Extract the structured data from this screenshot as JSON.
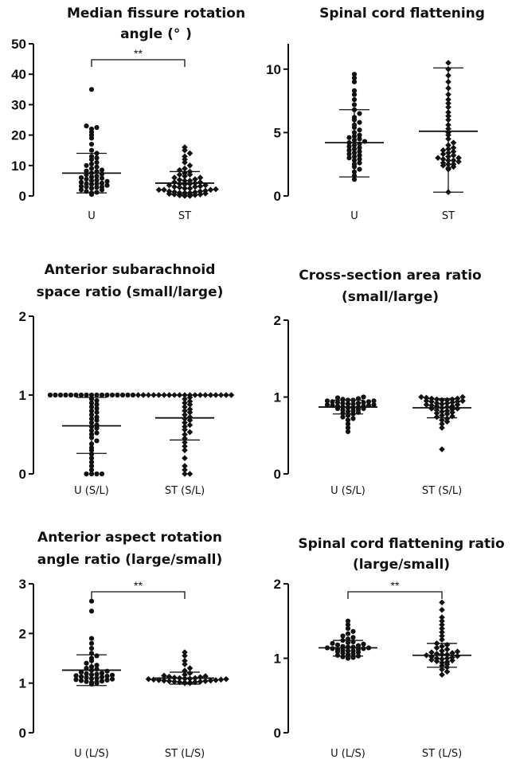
{
  "chart_data": [
    {
      "type": "scatter",
      "title_lines": [
        "Median fissure rotation",
        "angle (°  )"
      ],
      "ylim": [
        0,
        50
      ],
      "yticks": [
        "0",
        "10",
        "20",
        "30",
        "40",
        "50"
      ],
      "categories": [
        "U",
        "ST"
      ],
      "significance": "**",
      "series": [
        {
          "name": "U",
          "marker": "circle",
          "mean": 7.5,
          "sd_low": 1.0,
          "sd_high": 14.0,
          "values": [
            0.5,
            1,
            1.2,
            1.5,
            2,
            2,
            2.5,
            2.8,
            3,
            3,
            3.2,
            3.5,
            3.8,
            4,
            4,
            4.2,
            4.5,
            4.8,
            5,
            5.2,
            5.5,
            5.8,
            6,
            6.2,
            6.5,
            7,
            7.2,
            7.5,
            8,
            8.2,
            8.5,
            9,
            9.5,
            10,
            10.5,
            11,
            12,
            12.5,
            13,
            14,
            15,
            17,
            19,
            20,
            21,
            22,
            22.5,
            23,
            35
          ]
        },
        {
          "name": "ST",
          "marker": "diamond",
          "mean": 4.2,
          "sd_low": 0.5,
          "sd_high": 8.0,
          "values": [
            0,
            0,
            0.2,
            0.3,
            0.5,
            0.5,
            0.7,
            0.8,
            1,
            1,
            1,
            1.2,
            1.3,
            1.5,
            1.5,
            1.7,
            2,
            2,
            2,
            2.2,
            2.5,
            2.5,
            2.8,
            3,
            3,
            3.2,
            3.5,
            3.5,
            3.8,
            4,
            4,
            4.2,
            4.5,
            4.5,
            5,
            5,
            5.3,
            5.5,
            6,
            6,
            6.5,
            7,
            7,
            7.5,
            8,
            8.5,
            9,
            10,
            11,
            12,
            13,
            14,
            15,
            16
          ]
        }
      ]
    },
    {
      "type": "scatter",
      "title_lines": [
        "Spinal cord flattening"
      ],
      "ylim": [
        0,
        12
      ],
      "yticks": [
        "0",
        "5",
        "10"
      ],
      "categories": [
        "U",
        "ST"
      ],
      "series": [
        {
          "name": "U",
          "marker": "circle",
          "mean": 4.2,
          "sd_low": 1.5,
          "sd_high": 6.8,
          "values": [
            1.3,
            1.6,
            1.9,
            2.1,
            2.3,
            2.5,
            2.6,
            2.8,
            2.9,
            3,
            3.1,
            3.2,
            3.3,
            3.4,
            3.5,
            3.6,
            3.7,
            3.8,
            3.9,
            4,
            4.1,
            4.2,
            4.3,
            4.4,
            4.5,
            4.6,
            4.7,
            4.8,
            5,
            5.2,
            5.4,
            5.6,
            5.8,
            6,
            6.2,
            6.5,
            6.8,
            7.2,
            7.6,
            8,
            8.3,
            9,
            9.3,
            9.6
          ]
        },
        {
          "name": "ST",
          "marker": "diamond",
          "mean": 5.1,
          "sd_low": 0.3,
          "sd_high": 10.1,
          "values": [
            0.3,
            2.1,
            2.2,
            2.3,
            2.4,
            2.5,
            2.5,
            2.6,
            2.7,
            2.8,
            2.8,
            2.9,
            3,
            3,
            3.1,
            3.2,
            3.3,
            3.4,
            3.5,
            3.6,
            3.7,
            3.8,
            4,
            4.2,
            4.5,
            4.8,
            5,
            5.3,
            5.6,
            6,
            6.3,
            6.6,
            7,
            7.3,
            7.6,
            8,
            8.5,
            9,
            9.5,
            10,
            10.5
          ]
        }
      ]
    },
    {
      "type": "scatter",
      "title_lines": [
        "Anterior subarachnoid",
        "space ratio (small/large)"
      ],
      "ylim": [
        0,
        2
      ],
      "yticks": [
        "0",
        "1",
        "2"
      ],
      "categories": [
        "U (S/L)",
        "ST (S/L)"
      ],
      "series": [
        {
          "name": "U (S/L)",
          "marker": "circle",
          "mean": 0.61,
          "sd_low": 0.26,
          "sd_high": 0.97,
          "values": [
            0,
            0,
            0,
            0,
            0.05,
            0.1,
            0.15,
            0.2,
            0.25,
            0.3,
            0.33,
            0.38,
            0.42,
            0.46,
            0.5,
            0.52,
            0.55,
            0.58,
            0.6,
            0.62,
            0.65,
            0.68,
            0.7,
            0.72,
            0.75,
            0.78,
            0.8,
            0.83,
            0.85,
            0.88,
            0.9,
            0.93,
            0.95,
            1,
            1,
            1,
            1,
            1,
            1,
            1,
            1,
            1,
            1,
            1,
            1,
            1,
            1,
            1,
            1,
            1
          ]
        },
        {
          "name": "ST (S/L)",
          "marker": "diamond",
          "mean": 0.71,
          "sd_low": 0.43,
          "sd_high": 1.0,
          "values": [
            0,
            0,
            0.05,
            0.1,
            0.2,
            0.3,
            0.35,
            0.4,
            0.45,
            0.5,
            0.53,
            0.56,
            0.6,
            0.62,
            0.65,
            0.68,
            0.7,
            0.72,
            0.75,
            0.78,
            0.8,
            0.82,
            0.85,
            0.88,
            0.9,
            0.92,
            0.95,
            0.97,
            1,
            1,
            1,
            1,
            1,
            1,
            1,
            1,
            1,
            1,
            1,
            1,
            1,
            1,
            1,
            1,
            1,
            1,
            1
          ]
        }
      ]
    },
    {
      "type": "scatter",
      "title_lines": [
        "Cross-section area ratio",
        "(small/large)"
      ],
      "ylim": [
        0,
        2
      ],
      "yticks": [
        "0",
        "1",
        "2"
      ],
      "categories": [
        "U (S/L)",
        "ST (S/L)"
      ],
      "series": [
        {
          "name": "U (S/L)",
          "marker": "circle",
          "mean": 0.87,
          "sd_low": 0.78,
          "sd_high": 0.96,
          "values": [
            0.55,
            0.6,
            0.65,
            0.7,
            0.72,
            0.74,
            0.76,
            0.78,
            0.79,
            0.8,
            0.81,
            0.82,
            0.83,
            0.84,
            0.85,
            0.85,
            0.86,
            0.86,
            0.87,
            0.87,
            0.88,
            0.88,
            0.89,
            0.89,
            0.9,
            0.9,
            0.91,
            0.91,
            0.92,
            0.92,
            0.93,
            0.93,
            0.94,
            0.94,
            0.95,
            0.95,
            0.96,
            0.96,
            0.97,
            0.98,
            0.99,
            1
          ]
        },
        {
          "name": "ST (S/L)",
          "marker": "diamond",
          "mean": 0.86,
          "sd_low": 0.73,
          "sd_high": 0.98,
          "values": [
            0.32,
            0.6,
            0.65,
            0.68,
            0.7,
            0.72,
            0.74,
            0.75,
            0.76,
            0.78,
            0.79,
            0.8,
            0.81,
            0.82,
            0.83,
            0.84,
            0.85,
            0.85,
            0.86,
            0.87,
            0.88,
            0.88,
            0.89,
            0.9,
            0.9,
            0.91,
            0.92,
            0.92,
            0.93,
            0.94,
            0.94,
            0.95,
            0.95,
            0.96,
            0.96,
            0.97,
            0.97,
            0.98,
            0.98,
            0.99,
            1,
            1
          ]
        }
      ]
    },
    {
      "type": "scatter",
      "title_lines": [
        "Anterior aspect rotation",
        "angle ratio (large/small)"
      ],
      "ylim": [
        0,
        3
      ],
      "yticks": [
        "0",
        "1",
        "2",
        "3"
      ],
      "categories": [
        "U (L/S)",
        "ST (L/S)"
      ],
      "significance": "**",
      "series": [
        {
          "name": "U (L/S)",
          "marker": "circle",
          "mean": 1.26,
          "sd_low": 0.95,
          "sd_high": 1.57,
          "values": [
            0.98,
            1,
            1.01,
            1.02,
            1.03,
            1.04,
            1.05,
            1.06,
            1.07,
            1.08,
            1.09,
            1.1,
            1.11,
            1.12,
            1.13,
            1.14,
            1.15,
            1.16,
            1.17,
            1.18,
            1.19,
            1.2,
            1.22,
            1.24,
            1.26,
            1.28,
            1.3,
            1.33,
            1.36,
            1.4,
            1.45,
            1.5,
            1.55,
            1.6,
            1.7,
            1.8,
            1.9,
            2.45,
            2.65
          ]
        },
        {
          "name": "ST (L/S)",
          "marker": "diamond",
          "mean": 1.1,
          "sd_low": 0.98,
          "sd_high": 1.22,
          "values": [
            1,
            1,
            1.01,
            1.01,
            1.02,
            1.02,
            1.03,
            1.03,
            1.04,
            1.04,
            1.05,
            1.05,
            1.06,
            1.06,
            1.07,
            1.07,
            1.08,
            1.08,
            1.09,
            1.09,
            1.1,
            1.1,
            1.11,
            1.12,
            1.13,
            1.14,
            1.15,
            1.17,
            1.2,
            1.25,
            1.3,
            1.38,
            1.45,
            1.55,
            1.62
          ]
        }
      ]
    },
    {
      "type": "scatter",
      "title_lines": [
        "Spinal cord flattening ratio",
        "(large/small)"
      ],
      "ylim": [
        0,
        2
      ],
      "yticks": [
        "0",
        "1",
        "2"
      ],
      "categories": [
        "U (L/S)",
        "ST (L/S)"
      ],
      "significance": "**",
      "series": [
        {
          "name": "U (L/S)",
          "marker": "circle",
          "mean": 1.14,
          "sd_low": 1.03,
          "sd_high": 1.24,
          "values": [
            1,
            1.01,
            1.02,
            1.03,
            1.04,
            1.05,
            1.06,
            1.07,
            1.08,
            1.09,
            1.1,
            1.1,
            1.11,
            1.12,
            1.12,
            1.13,
            1.13,
            1.14,
            1.14,
            1.15,
            1.15,
            1.16,
            1.17,
            1.18,
            1.19,
            1.2,
            1.21,
            1.22,
            1.24,
            1.26,
            1.28,
            1.3,
            1.33,
            1.36,
            1.4,
            1.45,
            1.5
          ]
        },
        {
          "name": "ST (L/S)",
          "marker": "diamond",
          "mean": 1.04,
          "sd_low": 0.88,
          "sd_high": 1.2,
          "values": [
            0.78,
            0.82,
            0.85,
            0.88,
            0.9,
            0.92,
            0.94,
            0.95,
            0.96,
            0.97,
            0.98,
            0.99,
            1,
            1,
            1.01,
            1.02,
            1.03,
            1.04,
            1.05,
            1.05,
            1.06,
            1.07,
            1.08,
            1.09,
            1.1,
            1.12,
            1.14,
            1.16,
            1.18,
            1.2,
            1.25,
            1.3,
            1.35,
            1.4,
            1.45,
            1.5,
            1.55,
            1.65,
            1.75
          ]
        }
      ]
    }
  ]
}
